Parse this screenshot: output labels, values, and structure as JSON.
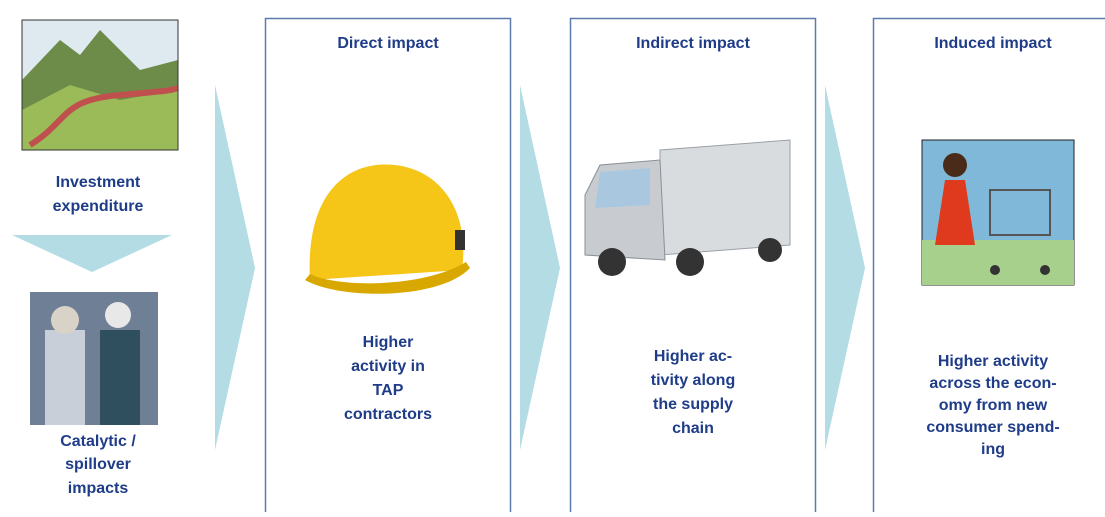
{
  "source": {
    "label": [
      "Investment",
      "expenditure"
    ]
  },
  "catalytic": {
    "label": [
      "Catalytic /",
      "spillover",
      "impacts"
    ]
  },
  "stages": [
    {
      "title": "Direct impact",
      "label": [
        "Higher",
        "activity in",
        "TAP",
        "contractors"
      ]
    },
    {
      "title": "Indirect impact",
      "label": [
        "Higher ac-",
        "tivity along",
        "the supply",
        "chain"
      ]
    },
    {
      "title": "Induced impact",
      "label": [
        "Higher activity",
        "across the econ-",
        "omy from new",
        "consumer spend-",
        "ing"
      ]
    }
  ]
}
